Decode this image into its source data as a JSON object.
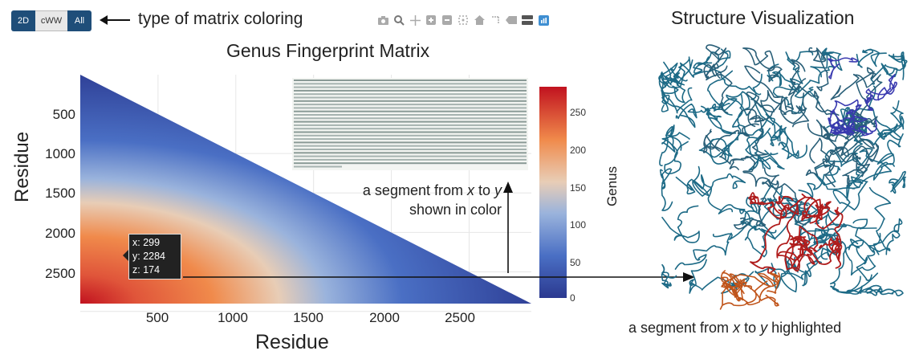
{
  "toolbar": {
    "buttons": [
      {
        "label": "2D",
        "selected": true
      },
      {
        "label": "cWW",
        "selected": false
      },
      {
        "label": "All",
        "selected": true
      }
    ],
    "annotation": "type of matrix coloring",
    "modebar_icons": [
      "camera-icon",
      "zoom-icon",
      "pan-icon",
      "zoom-in-icon",
      "zoom-out-icon",
      "autoscale-icon",
      "home-icon",
      "spike-lines-icon",
      "hover-closest-icon",
      "hover-compare-icon",
      "plotly-logo-icon"
    ]
  },
  "matrix": {
    "title": "Genus Fingerprint Matrix",
    "xlabel": "Residue",
    "ylabel": "Residue",
    "colorbar_label": "Genus",
    "colorbar_ticks": [
      "250",
      "200",
      "150",
      "100",
      "50",
      "0"
    ],
    "tooltip": {
      "x": "x: 299",
      "y": "y: 2284",
      "z": "z: 174"
    }
  },
  "chart_data": {
    "type": "heatmap",
    "title": "Genus Fingerprint Matrix",
    "xlabel": "Residue",
    "ylabel": "Residue",
    "x_ticks": [
      500,
      1000,
      1500,
      2000,
      2500
    ],
    "y_ticks": [
      500,
      1000,
      1500,
      2000,
      2500
    ],
    "xlim": [
      0,
      2900
    ],
    "ylim": [
      2900,
      0
    ],
    "colorbar": {
      "label": "Genus",
      "range": [
        0,
        280
      ],
      "ticks": [
        0,
        50,
        100,
        150,
        200,
        250
      ],
      "colorscale": [
        "#2b3990",
        "#4a6fc4",
        "#9ab3dc",
        "#e8cdb6",
        "#f08a4b",
        "#c1121f"
      ]
    },
    "hover_point": {
      "x": 299,
      "y": 2284,
      "z": 174
    }
  },
  "captions": {
    "segment_color_line1": "a segment from x to y",
    "segment_color_line2": "shown in color",
    "segment_highlighted": "a segment from x to y highlighted"
  },
  "structure": {
    "title": "Structure Visualization"
  }
}
